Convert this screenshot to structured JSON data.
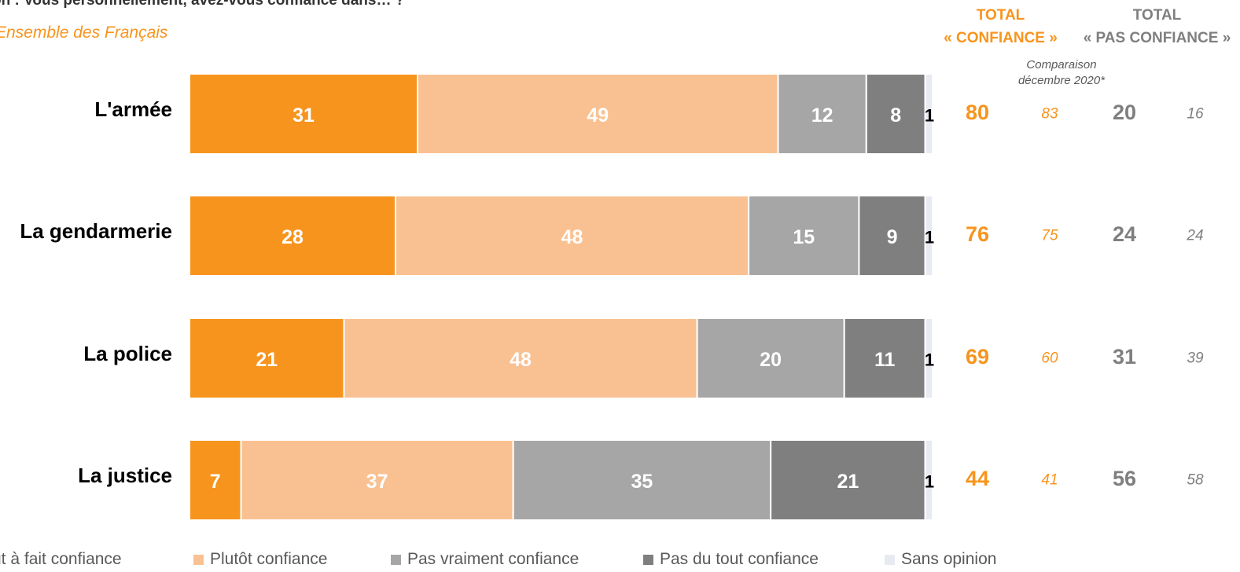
{
  "header": {
    "question": "on : Vous personnellement, avez-vous confiance dans… ?",
    "subtitle": "Ensemble des Français",
    "total_confiance_line1": "TOTAL",
    "total_confiance_line2": "« CONFIANCE »",
    "total_pas_line1": "TOTAL",
    "total_pas_line2": "« PAS CONFIANCE »",
    "comparison_line1": "Comparaison",
    "comparison_line2": "décembre 2020*"
  },
  "colors": {
    "tout_a_fait": "#F7941D",
    "plutot": "#F9C192",
    "pas_vraiment": "#A6A6A6",
    "pas_du_tout": "#7F7F7F",
    "sans_opinion": "#E8EAF2",
    "orange_text": "#F7941D",
    "grey_text": "#7F7F7F"
  },
  "legend": [
    {
      "label": "ut à fait confiance",
      "color": "#F7941D"
    },
    {
      "label": "Plutôt confiance",
      "color": "#F9C192"
    },
    {
      "label": "Pas vraiment confiance",
      "color": "#A6A6A6"
    },
    {
      "label": "Pas du tout confiance",
      "color": "#7F7F7F"
    },
    {
      "label": "Sans opinion",
      "color": "#E8EAF2"
    }
  ],
  "chart_data": {
    "type": "bar",
    "orientation": "horizontal",
    "stacked": true,
    "categories": [
      "L'armée",
      "La gendarmerie",
      "La police",
      "La justice"
    ],
    "series": [
      {
        "name": "Tout à fait confiance",
        "values": [
          31,
          28,
          21,
          7
        ]
      },
      {
        "name": "Plutôt confiance",
        "values": [
          49,
          48,
          48,
          37
        ]
      },
      {
        "name": "Pas vraiment confiance",
        "values": [
          12,
          15,
          20,
          35
        ]
      },
      {
        "name": "Pas du tout confiance",
        "values": [
          8,
          9,
          11,
          21
        ]
      },
      {
        "name": "Sans opinion",
        "values": [
          1,
          1,
          1,
          1
        ]
      }
    ],
    "total_confiance": [
      80,
      76,
      69,
      44
    ],
    "comparison_dec_2020_confiance": [
      83,
      75,
      60,
      41
    ],
    "total_pas_confiance": [
      20,
      24,
      31,
      56
    ],
    "comparison_dec_2020_pas_confiance": [
      16,
      24,
      39,
      58
    ],
    "xlim": [
      0,
      101
    ]
  }
}
